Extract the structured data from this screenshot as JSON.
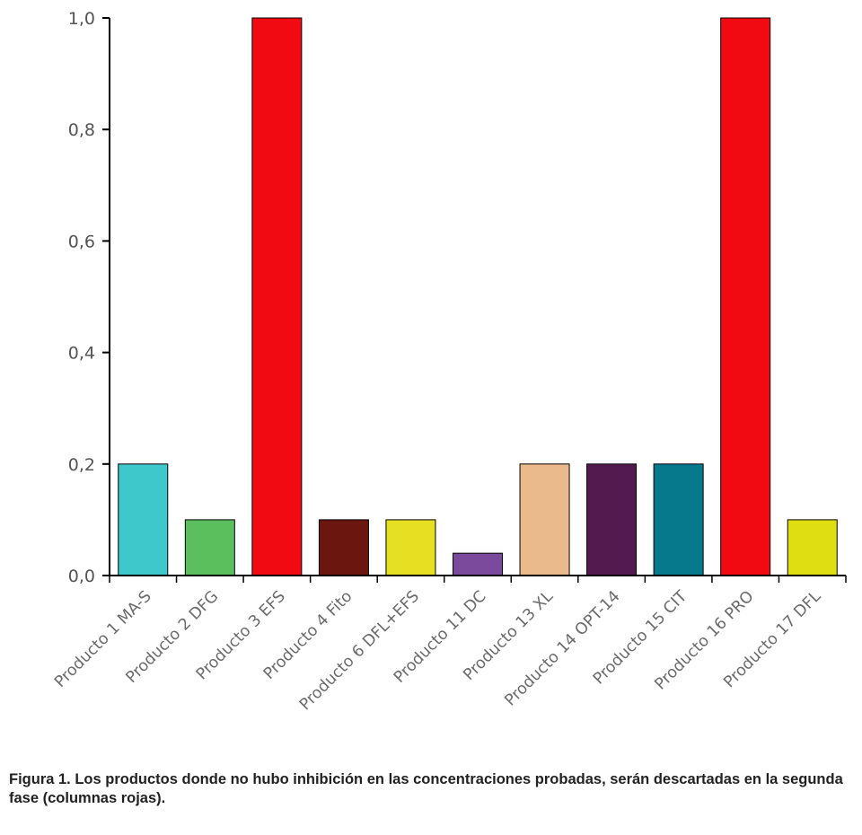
{
  "chart_data": {
    "type": "bar",
    "categories": [
      "Producto 1 MA-S",
      "Producto 2 DFG",
      "Producto 3 EFS",
      "Producto 4 Fito",
      "Producto 6 DFL+EFS",
      "Producto 11 DC",
      "Producto 13 XL",
      "Producto 14 OPT-14",
      "Producto 15 CIT",
      "Producto 16 PRO",
      "Producto 17 DFL"
    ],
    "values": [
      0.2,
      0.1,
      1.0,
      0.1,
      0.1,
      0.04,
      0.2,
      0.2,
      0.2,
      1.0,
      0.1
    ],
    "colors": [
      "#3ec8cc",
      "#5cbf5e",
      "#f20a12",
      "#6b1710",
      "#e6df22",
      "#7b4a9c",
      "#eab98c",
      "#521a4e",
      "#07798c",
      "#f20a12",
      "#dede12"
    ],
    "ylim": [
      0,
      1.0
    ],
    "y_ticks": [
      "0,0",
      "0,2",
      "0,4",
      "0,6",
      "0,8",
      "1,0"
    ],
    "grid": false,
    "legend": "none",
    "title": "",
    "xlabel": "",
    "ylabel": ""
  },
  "caption": "Figura 1. Los productos donde no hubo inhibición en las concentraciones probadas, serán descartadas en la segunda fase (columnas rojas)."
}
